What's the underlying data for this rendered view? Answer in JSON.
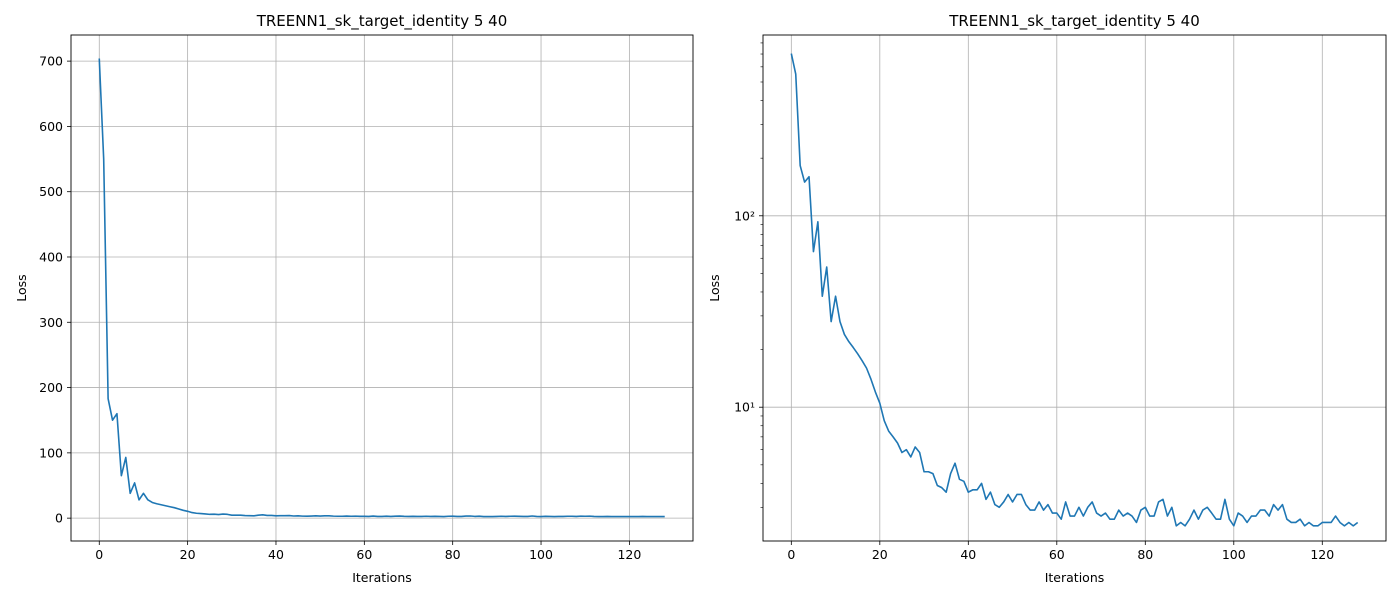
{
  "chart_data": [
    {
      "type": "line",
      "title": "TREENN1_sk_target_identity 5 40",
      "xlabel": "Iterations",
      "ylabel": "Loss",
      "xlim": [
        -6.4,
        134.4
      ],
      "ylim": [
        -35,
        740
      ],
      "yscale": "linear",
      "grid": true,
      "xticks": [
        0,
        20,
        40,
        60,
        80,
        100,
        120
      ],
      "yticks": [
        0,
        100,
        200,
        300,
        400,
        500,
        600,
        700
      ],
      "ytick_labels": [
        "0",
        "100",
        "200",
        "300",
        "400",
        "500",
        "600",
        "700"
      ],
      "line_color": "#1f77b4",
      "series": [
        {
          "values": [
            704,
            550,
            183,
            150,
            160,
            65,
            93,
            38,
            54,
            28,
            38,
            28,
            24,
            22,
            20.5,
            19,
            17.5,
            16,
            14,
            12,
            10.5,
            8.5,
            7.5,
            7,
            6.5,
            5.8,
            6,
            5.5,
            6.2,
            5.8,
            4.6,
            4.6,
            4.5,
            3.9,
            3.8,
            3.6,
            4.5,
            5.1,
            4.2,
            4.1,
            3.6,
            3.7,
            3.7,
            4.0,
            3.3,
            3.6,
            3.1,
            3.0,
            3.2,
            3.5,
            3.2,
            3.5,
            3.5,
            3.1,
            2.9,
            2.9,
            3.2,
            2.9,
            3.1,
            2.8,
            2.8,
            2.6,
            3.2,
            2.7,
            2.7,
            3.0,
            2.7,
            3.0,
            3.2,
            2.8,
            2.7,
            2.8,
            2.6,
            2.6,
            2.9,
            2.7,
            2.8,
            2.7,
            2.5,
            2.9,
            3.0,
            2.7,
            2.7,
            3.2,
            3.3,
            2.7,
            3.0,
            2.4,
            2.5,
            2.4,
            2.6,
            2.9,
            2.6,
            2.9,
            3.0,
            2.8,
            2.6,
            2.6,
            3.3,
            2.6,
            2.4,
            2.8,
            2.7,
            2.5,
            2.7,
            2.7,
            2.9,
            2.9,
            2.7,
            3.1,
            2.9,
            3.1,
            2.6,
            2.5,
            2.5,
            2.6,
            2.4,
            2.5,
            2.4,
            2.4,
            2.5,
            2.5,
            2.5,
            2.7,
            2.5,
            2.4,
            2.5,
            2.4,
            2.5
          ]
        }
      ]
    },
    {
      "type": "line",
      "title": "TREENN1_sk_target_identity 5 40",
      "xlabel": "Iterations",
      "ylabel": "Loss",
      "xlim": [
        -6.4,
        134.4
      ],
      "ylim": [
        2.0,
        880
      ],
      "yscale": "log",
      "grid": true,
      "xticks": [
        0,
        20,
        40,
        60,
        80,
        100,
        120
      ],
      "yticks": [
        10,
        100
      ],
      "ytick_labels": [
        "10¹",
        "10²"
      ],
      "line_color": "#1f77b4",
      "series": [
        {
          "values": [
            704,
            550,
            183,
            150,
            160,
            65,
            93,
            38,
            54,
            28,
            38,
            28,
            24,
            22,
            20.5,
            19,
            17.5,
            16,
            14,
            12,
            10.5,
            8.5,
            7.5,
            7,
            6.5,
            5.8,
            6,
            5.5,
            6.2,
            5.8,
            4.6,
            4.6,
            4.5,
            3.9,
            3.8,
            3.6,
            4.5,
            5.1,
            4.2,
            4.1,
            3.6,
            3.7,
            3.7,
            4.0,
            3.3,
            3.6,
            3.1,
            3.0,
            3.2,
            3.5,
            3.2,
            3.5,
            3.5,
            3.1,
            2.9,
            2.9,
            3.2,
            2.9,
            3.1,
            2.8,
            2.8,
            2.6,
            3.2,
            2.7,
            2.7,
            3.0,
            2.7,
            3.0,
            3.2,
            2.8,
            2.7,
            2.8,
            2.6,
            2.6,
            2.9,
            2.7,
            2.8,
            2.7,
            2.5,
            2.9,
            3.0,
            2.7,
            2.7,
            3.2,
            3.3,
            2.7,
            3.0,
            2.4,
            2.5,
            2.4,
            2.6,
            2.9,
            2.6,
            2.9,
            3.0,
            2.8,
            2.6,
            2.6,
            3.3,
            2.6,
            2.4,
            2.8,
            2.7,
            2.5,
            2.7,
            2.7,
            2.9,
            2.9,
            2.7,
            3.1,
            2.9,
            3.1,
            2.6,
            2.5,
            2.5,
            2.6,
            2.4,
            2.5,
            2.4,
            2.4,
            2.5,
            2.5,
            2.5,
            2.7,
            2.5,
            2.4,
            2.5,
            2.4,
            2.5
          ]
        }
      ]
    }
  ]
}
